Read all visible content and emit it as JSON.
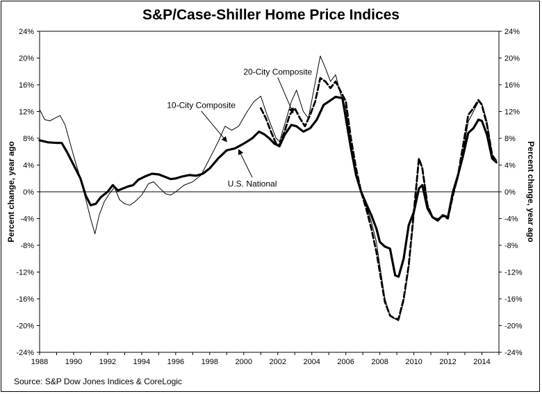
{
  "chart_data": {
    "type": "line",
    "title": "S&P/Case-Shiller Home Price Indices",
    "source": "Source: S&P Dow Jones Indices & CoreLogic",
    "ylabel_left": "Percent change, year ago",
    "ylabel_right": "Percent change, year ago",
    "xlim": [
      1988,
      2015
    ],
    "ylim": [
      -24,
      24
    ],
    "x_ticks": [
      1988,
      1990,
      1992,
      1994,
      1996,
      1998,
      2000,
      2002,
      2004,
      2006,
      2008,
      2010,
      2012,
      2014
    ],
    "x_tick_labels": [
      "1988",
      "1990",
      "1992",
      "1994",
      "1996",
      "1998",
      "2000",
      "2002",
      "2004",
      "2006",
      "2008",
      "2010",
      "2012",
      "2014"
    ],
    "y_ticks": [
      -24,
      -20,
      -16,
      -12,
      -8,
      -4,
      0,
      4,
      8,
      12,
      16,
      20,
      24
    ],
    "y_tick_labels": [
      "-24%",
      "-20%",
      "-16%",
      "-12%",
      "-8%",
      "-4%",
      "0%",
      "4%",
      "8%",
      "12%",
      "16%",
      "20%",
      "24%"
    ],
    "grid": false,
    "annotations": [
      {
        "text": "20-City Composite",
        "x": 2002.0,
        "y": 17.5,
        "arrow_to": [
          2002.9,
          11.8
        ]
      },
      {
        "text": "10-City Composite",
        "x": 1997.5,
        "y": 12.5,
        "arrow_to": [
          1999.0,
          7.5
        ]
      },
      {
        "text": "U.S. National",
        "x": 2000.5,
        "y": 0.8,
        "arrow_to": [
          1999.7,
          6.3
        ]
      }
    ],
    "series": [
      {
        "name": "10-City Composite",
        "style": "thin",
        "color": "#000000",
        "points": [
          [
            1988.0,
            12.3
          ],
          [
            1988.3,
            10.8
          ],
          [
            1988.6,
            10.6
          ],
          [
            1988.9,
            11.0
          ],
          [
            1989.2,
            11.4
          ],
          [
            1989.5,
            10.0
          ],
          [
            1989.8,
            7.2
          ],
          [
            1990.1,
            4.5
          ],
          [
            1990.4,
            2.0
          ],
          [
            1990.7,
            -1.0
          ],
          [
            1991.0,
            -4.0
          ],
          [
            1991.25,
            -6.3
          ],
          [
            1991.5,
            -3.5
          ],
          [
            1991.8,
            -1.5
          ],
          [
            1992.1,
            -0.3
          ],
          [
            1992.4,
            0.7
          ],
          [
            1992.7,
            -1.2
          ],
          [
            1993.0,
            -1.8
          ],
          [
            1993.3,
            -2.0
          ],
          [
            1993.6,
            -1.5
          ],
          [
            1994.0,
            -0.5
          ],
          [
            1994.4,
            1.2
          ],
          [
            1994.7,
            1.5
          ],
          [
            1995.0,
            0.7
          ],
          [
            1995.4,
            -0.3
          ],
          [
            1995.7,
            -0.5
          ],
          [
            1996.0,
            0.0
          ],
          [
            1996.5,
            1.0
          ],
          [
            1997.0,
            1.5
          ],
          [
            1997.5,
            2.5
          ],
          [
            1998.0,
            5.0
          ],
          [
            1998.5,
            7.5
          ],
          [
            1998.9,
            9.8
          ],
          [
            1999.3,
            9.2
          ],
          [
            1999.7,
            9.8
          ],
          [
            2000.2,
            12.0
          ],
          [
            2000.6,
            13.5
          ],
          [
            2001.0,
            14.3
          ],
          [
            2001.3,
            12.0
          ],
          [
            2001.6,
            10.0
          ],
          [
            2001.9,
            8.0
          ],
          [
            2002.1,
            7.5
          ],
          [
            2002.4,
            10.0
          ],
          [
            2002.8,
            13.5
          ],
          [
            2003.1,
            15.2
          ],
          [
            2003.5,
            12.0
          ],
          [
            2003.8,
            11.0
          ],
          [
            2004.1,
            15.0
          ],
          [
            2004.5,
            20.3
          ],
          [
            2004.8,
            18.5
          ],
          [
            2005.1,
            16.5
          ],
          [
            2005.4,
            17.5
          ],
          [
            2005.7,
            14.5
          ],
          [
            2006.0,
            12.5
          ],
          [
            2006.3,
            7.0
          ],
          [
            2006.6,
            2.5
          ],
          [
            2006.9,
            0.0
          ],
          [
            2007.2,
            -2.0
          ],
          [
            2007.5,
            -4.5
          ],
          [
            2007.8,
            -7.5
          ],
          [
            2008.0,
            -11.0
          ],
          [
            2008.3,
            -16.0
          ],
          [
            2008.6,
            -18.5
          ],
          [
            2008.9,
            -19.0
          ],
          [
            2009.1,
            -19.3
          ],
          [
            2009.4,
            -16.5
          ],
          [
            2009.7,
            -11.5
          ],
          [
            2010.0,
            -3.5
          ],
          [
            2010.3,
            5.0
          ],
          [
            2010.5,
            3.5
          ],
          [
            2010.8,
            -2.0
          ],
          [
            2011.1,
            -3.8
          ],
          [
            2011.4,
            -4.0
          ],
          [
            2011.7,
            -3.6
          ],
          [
            2012.0,
            -3.8
          ],
          [
            2012.3,
            -0.5
          ],
          [
            2012.6,
            2.0
          ],
          [
            2012.9,
            6.0
          ],
          [
            2013.2,
            10.5
          ],
          [
            2013.5,
            12.0
          ],
          [
            2013.8,
            13.5
          ],
          [
            2014.0,
            13.2
          ],
          [
            2014.3,
            10.5
          ],
          [
            2014.6,
            5.5
          ],
          [
            2014.85,
            4.5
          ]
        ]
      },
      {
        "name": "20-City Composite",
        "style": "dashed",
        "color": "#000000",
        "points": [
          [
            2001.0,
            12.5
          ],
          [
            2001.3,
            11.0
          ],
          [
            2001.6,
            9.0
          ],
          [
            2001.9,
            7.2
          ],
          [
            2002.1,
            7.0
          ],
          [
            2002.4,
            9.0
          ],
          [
            2002.7,
            11.5
          ],
          [
            2003.0,
            12.5
          ],
          [
            2003.3,
            11.0
          ],
          [
            2003.6,
            9.8
          ],
          [
            2003.9,
            11.5
          ],
          [
            2004.2,
            13.5
          ],
          [
            2004.5,
            17.0
          ],
          [
            2004.8,
            16.5
          ],
          [
            2005.1,
            15.5
          ],
          [
            2005.4,
            16.5
          ],
          [
            2005.7,
            15.0
          ],
          [
            2006.0,
            13.5
          ],
          [
            2006.3,
            8.0
          ],
          [
            2006.6,
            3.5
          ],
          [
            2006.9,
            0.0
          ],
          [
            2007.2,
            -2.5
          ],
          [
            2007.5,
            -5.5
          ],
          [
            2007.8,
            -9.0
          ],
          [
            2008.0,
            -12.0
          ],
          [
            2008.3,
            -16.5
          ],
          [
            2008.6,
            -18.5
          ],
          [
            2008.9,
            -19.0
          ],
          [
            2009.1,
            -19.0
          ],
          [
            2009.4,
            -16.0
          ],
          [
            2009.7,
            -11.0
          ],
          [
            2010.0,
            -3.0
          ],
          [
            2010.3,
            5.0
          ],
          [
            2010.5,
            3.5
          ],
          [
            2010.8,
            -2.0
          ],
          [
            2011.1,
            -3.8
          ],
          [
            2011.4,
            -4.2
          ],
          [
            2011.7,
            -3.6
          ],
          [
            2012.0,
            -4.0
          ],
          [
            2012.3,
            -0.5
          ],
          [
            2012.6,
            2.5
          ],
          [
            2012.9,
            7.0
          ],
          [
            2013.2,
            11.5
          ],
          [
            2013.5,
            12.5
          ],
          [
            2013.8,
            13.7
          ],
          [
            2014.0,
            13.0
          ],
          [
            2014.3,
            10.0
          ],
          [
            2014.6,
            5.5
          ],
          [
            2014.85,
            4.6
          ]
        ]
      },
      {
        "name": "U.S. National",
        "style": "thick",
        "color": "#000000",
        "points": [
          [
            1988.0,
            7.7
          ],
          [
            1988.5,
            7.4
          ],
          [
            1989.0,
            7.3
          ],
          [
            1989.3,
            7.3
          ],
          [
            1989.6,
            6.0
          ],
          [
            1990.0,
            4.0
          ],
          [
            1990.4,
            2.0
          ],
          [
            1990.7,
            -0.5
          ],
          [
            1991.0,
            -2.0
          ],
          [
            1991.3,
            -1.8
          ],
          [
            1991.6,
            -0.8
          ],
          [
            1992.0,
            0.0
          ],
          [
            1992.3,
            1.0
          ],
          [
            1992.6,
            0.2
          ],
          [
            1992.9,
            0.5
          ],
          [
            1993.2,
            0.8
          ],
          [
            1993.5,
            1.0
          ],
          [
            1993.8,
            1.8
          ],
          [
            1994.2,
            2.3
          ],
          [
            1994.6,
            2.7
          ],
          [
            1995.0,
            2.6
          ],
          [
            1995.4,
            2.2
          ],
          [
            1995.7,
            1.9
          ],
          [
            1996.0,
            2.0
          ],
          [
            1996.4,
            2.3
          ],
          [
            1996.8,
            2.5
          ],
          [
            1997.2,
            2.4
          ],
          [
            1997.6,
            2.7
          ],
          [
            1998.0,
            3.5
          ],
          [
            1998.5,
            5.0
          ],
          [
            1999.0,
            6.2
          ],
          [
            1999.5,
            6.5
          ],
          [
            2000.0,
            7.2
          ],
          [
            2000.5,
            8.0
          ],
          [
            2000.9,
            9.0
          ],
          [
            2001.2,
            8.6
          ],
          [
            2001.5,
            8.0
          ],
          [
            2001.8,
            7.2
          ],
          [
            2002.1,
            6.8
          ],
          [
            2002.4,
            8.5
          ],
          [
            2002.8,
            10.0
          ],
          [
            2003.1,
            9.8
          ],
          [
            2003.5,
            9.0
          ],
          [
            2003.9,
            9.5
          ],
          [
            2004.3,
            10.8
          ],
          [
            2004.7,
            13.0
          ],
          [
            2005.0,
            13.5
          ],
          [
            2005.4,
            14.2
          ],
          [
            2005.8,
            14.0
          ],
          [
            2006.0,
            11.0
          ],
          [
            2006.3,
            6.5
          ],
          [
            2006.6,
            2.5
          ],
          [
            2006.9,
            0.0
          ],
          [
            2007.2,
            -1.8
          ],
          [
            2007.5,
            -3.5
          ],
          [
            2007.8,
            -5.5
          ],
          [
            2008.0,
            -7.5
          ],
          [
            2008.3,
            -8.2
          ],
          [
            2008.6,
            -8.5
          ],
          [
            2008.9,
            -12.5
          ],
          [
            2009.1,
            -12.7
          ],
          [
            2009.4,
            -10.0
          ],
          [
            2009.7,
            -5.0
          ],
          [
            2010.0,
            -3.0
          ],
          [
            2010.3,
            0.5
          ],
          [
            2010.5,
            1.0
          ],
          [
            2010.8,
            -2.5
          ],
          [
            2011.1,
            -3.8
          ],
          [
            2011.4,
            -4.3
          ],
          [
            2011.7,
            -3.5
          ],
          [
            2012.0,
            -3.8
          ],
          [
            2012.3,
            0.0
          ],
          [
            2012.6,
            2.5
          ],
          [
            2012.9,
            5.5
          ],
          [
            2013.2,
            8.8
          ],
          [
            2013.5,
            9.5
          ],
          [
            2013.8,
            10.8
          ],
          [
            2014.0,
            10.6
          ],
          [
            2014.3,
            8.5
          ],
          [
            2014.6,
            5.0
          ],
          [
            2014.85,
            4.4
          ]
        ]
      }
    ]
  }
}
